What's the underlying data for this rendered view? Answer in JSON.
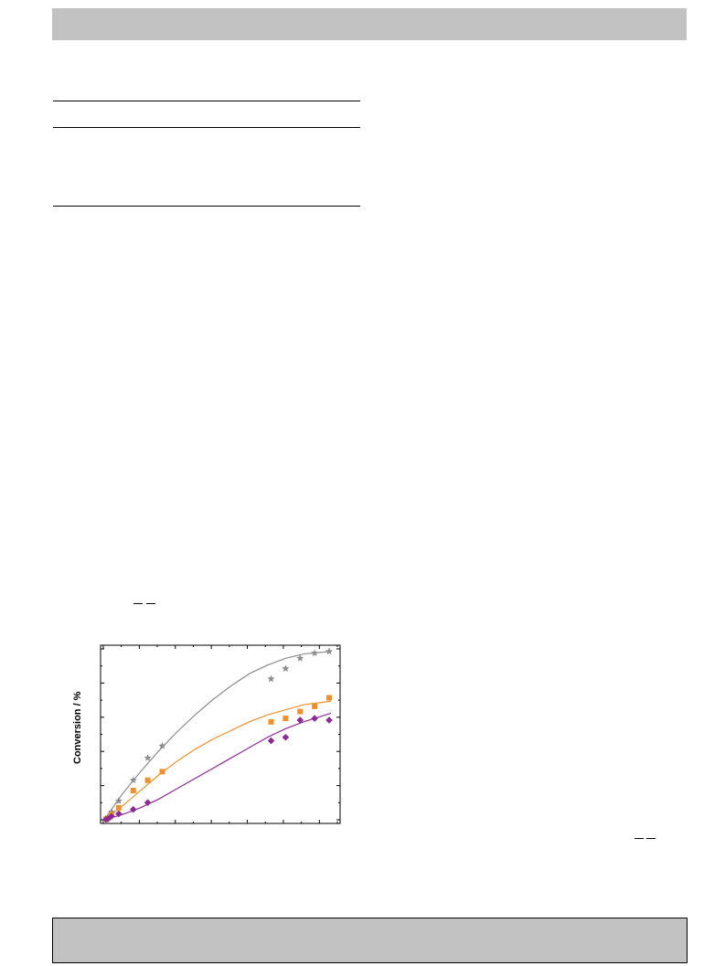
{
  "page": {
    "colors": {
      "banner": "#c2c2c2",
      "rule": "#000000"
    }
  },
  "chart_data": {
    "type": "scatter",
    "ylabel": "Conversion / %",
    "xlabel": "",
    "title": "",
    "xlim": [
      0,
      12.5
    ],
    "ylim": [
      0,
      100
    ],
    "grid": false,
    "legend": "none",
    "series": [
      {
        "color": "#8c8c8c",
        "marker": "star",
        "points": [
          [
            0.1,
            0.5
          ],
          [
            0.2,
            1.5
          ],
          [
            0.4,
            4.5
          ],
          [
            0.8,
            11
          ],
          [
            1.6,
            23
          ],
          [
            2.4,
            36
          ],
          [
            3.2,
            43
          ],
          [
            9.2,
            82
          ],
          [
            10,
            88
          ],
          [
            10.8,
            94
          ],
          [
            11.6,
            97
          ],
          [
            12.4,
            98
          ]
        ],
        "fit": [
          [
            0,
            0
          ],
          [
            1,
            15
          ],
          [
            2,
            28
          ],
          [
            3,
            40
          ],
          [
            4,
            51
          ],
          [
            5,
            61
          ],
          [
            6,
            70
          ],
          [
            7,
            78
          ],
          [
            8,
            85
          ],
          [
            9,
            90
          ],
          [
            10,
            94
          ],
          [
            11,
            96.5
          ],
          [
            12.5,
            98
          ]
        ]
      },
      {
        "color": "#f0902a",
        "marker": "square",
        "points": [
          [
            0.1,
            0.3
          ],
          [
            0.2,
            1
          ],
          [
            0.4,
            3
          ],
          [
            0.8,
            7
          ],
          [
            1.6,
            17
          ],
          [
            2.4,
            23
          ],
          [
            3.2,
            28
          ],
          [
            9.2,
            57
          ],
          [
            10,
            59
          ],
          [
            10.8,
            63
          ],
          [
            11.6,
            66
          ],
          [
            12.4,
            71
          ]
        ],
        "fit": [
          [
            0,
            0
          ],
          [
            1,
            8
          ],
          [
            2,
            17
          ],
          [
            3,
            26
          ],
          [
            4,
            34
          ],
          [
            5,
            41
          ],
          [
            6,
            47
          ],
          [
            7,
            52
          ],
          [
            8,
            57
          ],
          [
            9,
            61
          ],
          [
            10,
            64
          ],
          [
            11,
            67
          ],
          [
            12.5,
            69
          ]
        ]
      },
      {
        "color": "#8e2a96",
        "marker": "diamond",
        "points": [
          [
            0.1,
            0.2
          ],
          [
            0.2,
            0.5
          ],
          [
            0.4,
            2
          ],
          [
            0.8,
            3.5
          ],
          [
            1.6,
            6
          ],
          [
            2.4,
            10
          ],
          [
            9.2,
            46
          ],
          [
            10,
            48
          ],
          [
            10.8,
            58
          ],
          [
            11.6,
            59
          ],
          [
            12.4,
            58
          ]
        ],
        "fit": [
          [
            0,
            0
          ],
          [
            1,
            3
          ],
          [
            2,
            7
          ],
          [
            3,
            12
          ],
          [
            4,
            18
          ],
          [
            5,
            24
          ],
          [
            6,
            30
          ],
          [
            7,
            36
          ],
          [
            8,
            42
          ],
          [
            9,
            48
          ],
          [
            10,
            53
          ],
          [
            11,
            57
          ],
          [
            12.5,
            62
          ]
        ]
      }
    ]
  }
}
